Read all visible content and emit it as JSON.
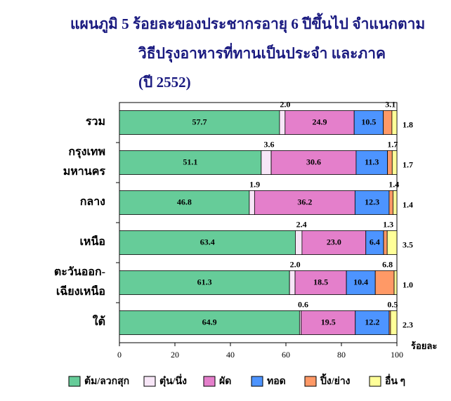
{
  "chart_data": {
    "type": "stacked-bar-horizontal",
    "title": [
      "แผนภูมิ 5  ร้อยละของประชากรอายุ 6 ปีขึ้นไป  จำแนกตาม",
      "วิธีปรุงอาหารที่ทานเป็นประจำ  และภาค",
      "(ปี 2552)"
    ],
    "categories": [
      [
        "รวม"
      ],
      [
        "กรุงเทพ",
        "มหานคร"
      ],
      [
        "กลาง"
      ],
      [
        "เหนือ"
      ],
      [
        "ตะวันออก-",
        "เฉียงเหนือ"
      ],
      [
        "ใต้"
      ]
    ],
    "series": [
      {
        "name": "ต้ม/ลวกสุก",
        "color": "#66cc99",
        "values": [
          57.7,
          51.1,
          46.8,
          63.4,
          61.3,
          64.9
        ],
        "value_labels": [
          "57.7",
          "51.1",
          "46.8",
          "63.4",
          "61.3",
          "64.9"
        ]
      },
      {
        "name": "ตุ๋น/นึ่ง",
        "color": "#f7e6f7",
        "values": [
          2.0,
          3.6,
          1.9,
          2.4,
          2.0,
          0.6
        ],
        "value_labels": [
          "2.0",
          "3.6",
          "1.9",
          "2.4",
          "2.0",
          "0.6"
        ]
      },
      {
        "name": "ผัด",
        "color": "#e47fcb",
        "values": [
          24.9,
          30.6,
          36.2,
          23.0,
          18.5,
          19.5
        ],
        "value_labels": [
          "24.9",
          "30.6",
          "36.2",
          "23.0",
          "18.5",
          "19.5"
        ]
      },
      {
        "name": "ทอด",
        "color": "#4d94ff",
        "values": [
          10.5,
          11.3,
          12.3,
          6.4,
          10.4,
          12.2
        ],
        "value_labels": [
          "10.5",
          "11.3",
          "12.3",
          "6.4",
          "10.4",
          "12.2"
        ]
      },
      {
        "name": "ปิ้ง/ย่าง",
        "color": "#ff9966",
        "values": [
          3.1,
          1.7,
          1.4,
          1.3,
          6.8,
          0.5
        ],
        "value_labels": [
          "3.1",
          "1.7",
          "1.4",
          "1.3",
          "6.8",
          "0.5"
        ]
      },
      {
        "name": "อื่น ๆ",
        "color": "#ffff99",
        "values": [
          1.8,
          1.7,
          1.4,
          3.5,
          1.0,
          2.3
        ],
        "value_labels": [
          "1.8",
          "1.7",
          "1.4",
          "3.5",
          "1.0",
          "2.3"
        ]
      }
    ],
    "xlabel": "ร้อยละ",
    "xlim": [
      0,
      100
    ],
    "xticks": [
      0,
      20,
      40,
      60,
      80,
      100
    ]
  }
}
